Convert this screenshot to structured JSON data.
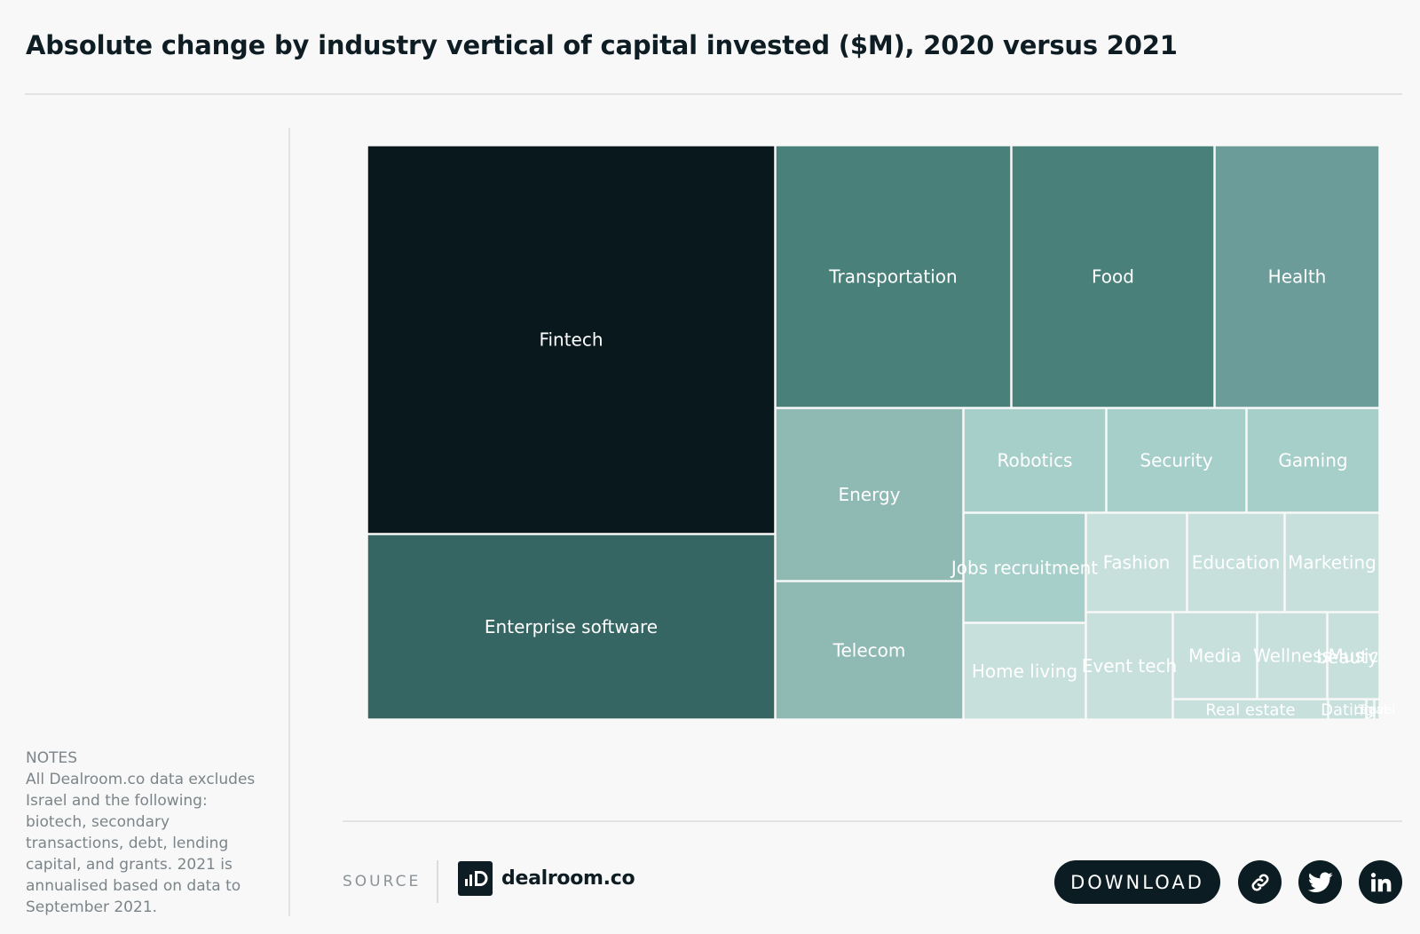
{
  "title": "Absolute change by industry vertical of capital invested ($M), 2020 versus 2021",
  "notes": {
    "heading": "NOTES",
    "text": "All Dealroom.co data excludes Israel and the following: biotech, secondary transactions, debt, lending capital, and grants. 2021 is annualised based on data to September 2021."
  },
  "footer": {
    "source_label": "SOURCE",
    "logo_text": "dealroom.co",
    "download_label": "DOWNLOAD"
  },
  "icons": {
    "link": "link-icon",
    "twitter": "twitter-icon",
    "linkedin": "linkedin-icon"
  },
  "colors": {
    "darkest": "#08181c",
    "dark_teal": "#366663",
    "teal": "#4a807a",
    "mid_teal": "#6b9c99",
    "light_teal": "#8fb9b3",
    "pale_teal": "#a7cfc9",
    "paler_teal": "#c7e0db"
  },
  "chart_data": {
    "type": "treemap",
    "title": "Absolute change by industry vertical of capital invested ($M), 2020 versus 2021",
    "categories": [
      "Fintech",
      "Enterprise software",
      "Transportation",
      "Food",
      "Health",
      "Energy",
      "Telecom",
      "Robotics",
      "Security",
      "Gaming",
      "Jobs recruitment",
      "Home living",
      "Fashion",
      "Education",
      "Marketing",
      "Event tech",
      "Media",
      "Wellness",
      "Music",
      "beauty",
      "Real estate",
      "Dating",
      "Legal",
      "Travel"
    ],
    "values": [
      25000,
      10000,
      9600,
      8200,
      6600,
      5100,
      4300,
      2300,
      2200,
      2000,
      2000,
      1850,
      1450,
      1400,
      1350,
      1300,
      1000,
      800,
      600,
      480,
      400,
      230,
      90,
      60
    ],
    "series": [
      {
        "name": "Fintech",
        "value": 25000,
        "color": "#08181c"
      },
      {
        "name": "Enterprise software",
        "value": 10000,
        "color": "#366663"
      },
      {
        "name": "Transportation",
        "value": 9600,
        "color": "#4a807a"
      },
      {
        "name": "Food",
        "value": 8200,
        "color": "#4a807a"
      },
      {
        "name": "Health",
        "value": 6600,
        "color": "#6b9c99"
      },
      {
        "name": "Energy",
        "value": 5100,
        "color": "#8fb9b3"
      },
      {
        "name": "Telecom",
        "value": 4300,
        "color": "#8fb9b3"
      },
      {
        "name": "Robotics",
        "value": 2300,
        "color": "#a7cfc9"
      },
      {
        "name": "Security",
        "value": 2200,
        "color": "#a7cfc9"
      },
      {
        "name": "Gaming",
        "value": 2000,
        "color": "#a7cfc9"
      },
      {
        "name": "Jobs recruitment",
        "value": 2000,
        "color": "#a7cfc9"
      },
      {
        "name": "Home living",
        "value": 1850,
        "color": "#c7e0db"
      },
      {
        "name": "Fashion",
        "value": 1450,
        "color": "#c7e0db"
      },
      {
        "name": "Education",
        "value": 1400,
        "color": "#c7e0db"
      },
      {
        "name": "Marketing",
        "value": 1350,
        "color": "#c7e0db"
      },
      {
        "name": "Event tech",
        "value": 1300,
        "color": "#c7e0db"
      },
      {
        "name": "Media",
        "value": 1000,
        "color": "#c7e0db"
      },
      {
        "name": "Wellness",
        "value": 800,
        "color": "#c7e0db"
      },
      {
        "name": "Music",
        "value": 600,
        "color": "#c7e0db"
      },
      {
        "name": "beauty",
        "value": 480,
        "color": "#c7e0db"
      },
      {
        "name": "Real estate",
        "value": 400,
        "color": "#c7e0db"
      },
      {
        "name": "Dating",
        "value": 230,
        "color": "#c7e0db"
      },
      {
        "name": "Legal",
        "value": 90,
        "color": "#c7e0db"
      },
      {
        "name": "Travel",
        "value": 60,
        "color": "#c7e0db"
      }
    ]
  }
}
